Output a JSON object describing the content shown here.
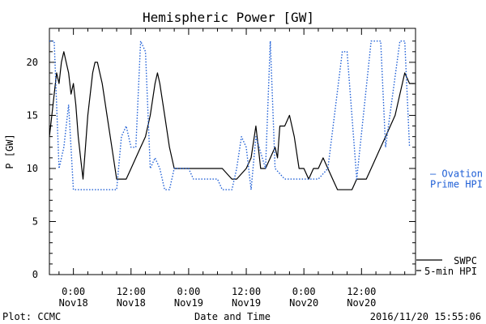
{
  "chart_data": {
    "type": "line",
    "title": "Hemispheric Power [GW]",
    "ylabel": "P [GW]",
    "xlabel": "Date and Time",
    "ylim": [
      0,
      23.2
    ],
    "xlim": [
      "2016-11-17 19:00",
      "2016-11-20 23:15"
    ],
    "yticks": [
      0,
      5,
      10,
      15,
      20
    ],
    "yminor": [
      1,
      2,
      3,
      4,
      6,
      7,
      8,
      9,
      11,
      12,
      13,
      14,
      16,
      17,
      18,
      19,
      21,
      22
    ],
    "xticks": [
      {
        "t": "2016-11-18 00:00",
        "line1": "0:00",
        "line2": "Nov18"
      },
      {
        "t": "2016-11-18 12:00",
        "line1": "12:00",
        "line2": "Nov18"
      },
      {
        "t": "2016-11-19 00:00",
        "line1": "0:00",
        "line2": "Nov19"
      },
      {
        "t": "2016-11-19 12:00",
        "line1": "12:00",
        "line2": "Nov19"
      },
      {
        "t": "2016-11-20 00:00",
        "line1": "0:00",
        "line2": "Nov20"
      },
      {
        "t": "2016-11-20 12:00",
        "line1": "12:00",
        "line2": "Nov20"
      }
    ],
    "grid": false,
    "legend_position": "right",
    "series": [
      {
        "name": "SWPC 5-min HPI",
        "legend_lines": [
          "SWPC",
          "5-min HPI"
        ],
        "color": "#000000",
        "style": "solid",
        "points": [
          [
            "2016-11-17 19:00",
            13
          ],
          [
            "2016-11-17 19:30",
            15
          ],
          [
            "2016-11-17 20:00",
            17
          ],
          [
            "2016-11-17 20:30",
            19
          ],
          [
            "2016-11-17 21:00",
            18
          ],
          [
            "2016-11-17 21:30",
            20
          ],
          [
            "2016-11-17 22:00",
            21
          ],
          [
            "2016-11-17 22:30",
            20
          ],
          [
            "2016-11-17 23:00",
            19
          ],
          [
            "2016-11-17 23:30",
            17
          ],
          [
            "2016-11-18 00:00",
            18
          ],
          [
            "2016-11-18 00:30",
            16
          ],
          [
            "2016-11-18 01:00",
            13
          ],
          [
            "2016-11-18 01:30",
            11
          ],
          [
            "2016-11-18 02:00",
            9
          ],
          [
            "2016-11-18 02:30",
            12
          ],
          [
            "2016-11-18 03:00",
            15
          ],
          [
            "2016-11-18 04:00",
            19
          ],
          [
            "2016-11-18 04:30",
            20
          ],
          [
            "2016-11-18 05:00",
            20
          ],
          [
            "2016-11-18 05:30",
            19
          ],
          [
            "2016-11-18 06:00",
            18
          ],
          [
            "2016-11-18 07:00",
            15
          ],
          [
            "2016-11-18 08:00",
            12
          ],
          [
            "2016-11-18 09:00",
            9
          ],
          [
            "2016-11-18 10:00",
            9
          ],
          [
            "2016-11-18 11:00",
            9
          ],
          [
            "2016-11-18 12:00",
            10
          ],
          [
            "2016-11-18 13:00",
            11
          ],
          [
            "2016-11-18 14:00",
            12
          ],
          [
            "2016-11-18 15:00",
            13
          ],
          [
            "2016-11-18 16:00",
            15
          ],
          [
            "2016-11-18 17:00",
            18
          ],
          [
            "2016-11-18 17:30",
            19
          ],
          [
            "2016-11-18 18:00",
            18
          ],
          [
            "2016-11-18 19:00",
            15
          ],
          [
            "2016-11-18 20:00",
            12
          ],
          [
            "2016-11-18 21:00",
            10
          ],
          [
            "2016-11-18 22:00",
            10
          ],
          [
            "2016-11-19 00:00",
            10
          ],
          [
            "2016-11-19 04:00",
            10
          ],
          [
            "2016-11-19 07:00",
            10
          ],
          [
            "2016-11-19 09:00",
            9
          ],
          [
            "2016-11-19 10:00",
            9
          ],
          [
            "2016-11-19 12:00",
            10
          ],
          [
            "2016-11-19 13:00",
            11
          ],
          [
            "2016-11-19 14:00",
            14
          ],
          [
            "2016-11-19 14:30",
            12
          ],
          [
            "2016-11-19 15:00",
            10
          ],
          [
            "2016-11-19 16:00",
            10
          ],
          [
            "2016-11-19 17:00",
            11
          ],
          [
            "2016-11-19 18:00",
            12
          ],
          [
            "2016-11-19 18:30",
            11
          ],
          [
            "2016-11-19 19:00",
            14
          ],
          [
            "2016-11-19 20:00",
            14
          ],
          [
            "2016-11-19 21:00",
            15
          ],
          [
            "2016-11-19 22:00",
            13
          ],
          [
            "2016-11-19 23:00",
            10
          ],
          [
            "2016-11-20 00:00",
            10
          ],
          [
            "2016-11-20 01:00",
            9
          ],
          [
            "2016-11-20 02:00",
            10
          ],
          [
            "2016-11-20 03:00",
            10
          ],
          [
            "2016-11-20 04:00",
            11
          ],
          [
            "2016-11-20 05:00",
            10
          ],
          [
            "2016-11-20 06:00",
            9
          ],
          [
            "2016-11-20 07:00",
            8
          ],
          [
            "2016-11-20 10:00",
            8
          ],
          [
            "2016-11-20 11:00",
            9
          ],
          [
            "2016-11-20 13:00",
            9
          ],
          [
            "2016-11-20 14:00",
            10
          ],
          [
            "2016-11-20 15:00",
            11
          ],
          [
            "2016-11-20 16:00",
            12
          ],
          [
            "2016-11-20 17:00",
            13
          ],
          [
            "2016-11-20 19:00",
            15
          ],
          [
            "2016-11-20 20:00",
            17
          ],
          [
            "2016-11-20 21:00",
            19
          ],
          [
            "2016-11-20 22:00",
            18
          ],
          [
            "2016-11-20 23:00",
            18
          ]
        ]
      },
      {
        "name": "Ovation Prime HPI",
        "legend_lines": [
          "— Ovation",
          "Prime HPI"
        ],
        "color": "#1f5fd6",
        "style": "dotted",
        "points": [
          [
            "2016-11-17 19:00",
            22
          ],
          [
            "2016-11-17 20:00",
            22
          ],
          [
            "2016-11-17 21:00",
            10
          ],
          [
            "2016-11-17 22:00",
            12
          ],
          [
            "2016-11-17 23:00",
            16
          ],
          [
            "2016-11-18 00:00",
            8
          ],
          [
            "2016-11-18 09:00",
            8
          ],
          [
            "2016-11-18 10:00",
            13
          ],
          [
            "2016-11-18 11:00",
            14
          ],
          [
            "2016-11-18 12:00",
            12
          ],
          [
            "2016-11-18 13:00",
            12
          ],
          [
            "2016-11-18 14:00",
            22
          ],
          [
            "2016-11-18 15:00",
            21
          ],
          [
            "2016-11-18 16:00",
            10
          ],
          [
            "2016-11-18 17:00",
            11
          ],
          [
            "2016-11-18 18:00",
            10
          ],
          [
            "2016-11-18 19:00",
            8
          ],
          [
            "2016-11-18 20:00",
            8
          ],
          [
            "2016-11-18 21:00",
            10
          ],
          [
            "2016-11-19 00:00",
            10
          ],
          [
            "2016-11-19 01:00",
            9
          ],
          [
            "2016-11-19 06:00",
            9
          ],
          [
            "2016-11-19 07:00",
            8
          ],
          [
            "2016-11-19 09:00",
            8
          ],
          [
            "2016-11-19 10:00",
            10
          ],
          [
            "2016-11-19 11:00",
            13
          ],
          [
            "2016-11-19 12:00",
            12
          ],
          [
            "2016-11-19 13:00",
            8
          ],
          [
            "2016-11-19 14:00",
            13
          ],
          [
            "2016-11-19 16:00",
            10
          ],
          [
            "2016-11-19 17:00",
            22
          ],
          [
            "2016-11-19 18:00",
            10
          ],
          [
            "2016-11-19 20:00",
            9
          ],
          [
            "2016-11-20 00:00",
            9
          ],
          [
            "2016-11-20 03:00",
            9
          ],
          [
            "2016-11-20 05:00",
            10
          ],
          [
            "2016-11-20 08:00",
            21
          ],
          [
            "2016-11-20 09:00",
            21
          ],
          [
            "2016-11-20 11:00",
            9
          ],
          [
            "2016-11-20 14:00",
            22
          ],
          [
            "2016-11-20 16:00",
            22
          ],
          [
            "2016-11-20 17:00",
            12
          ],
          [
            "2016-11-20 20:00",
            22
          ],
          [
            "2016-11-20 21:00",
            22
          ],
          [
            "2016-11-20 22:00",
            12
          ]
        ]
      }
    ]
  },
  "footer": {
    "left": "Plot: CCMC",
    "center": "Date and Time",
    "right": "2016/11/20 15:55:06"
  }
}
